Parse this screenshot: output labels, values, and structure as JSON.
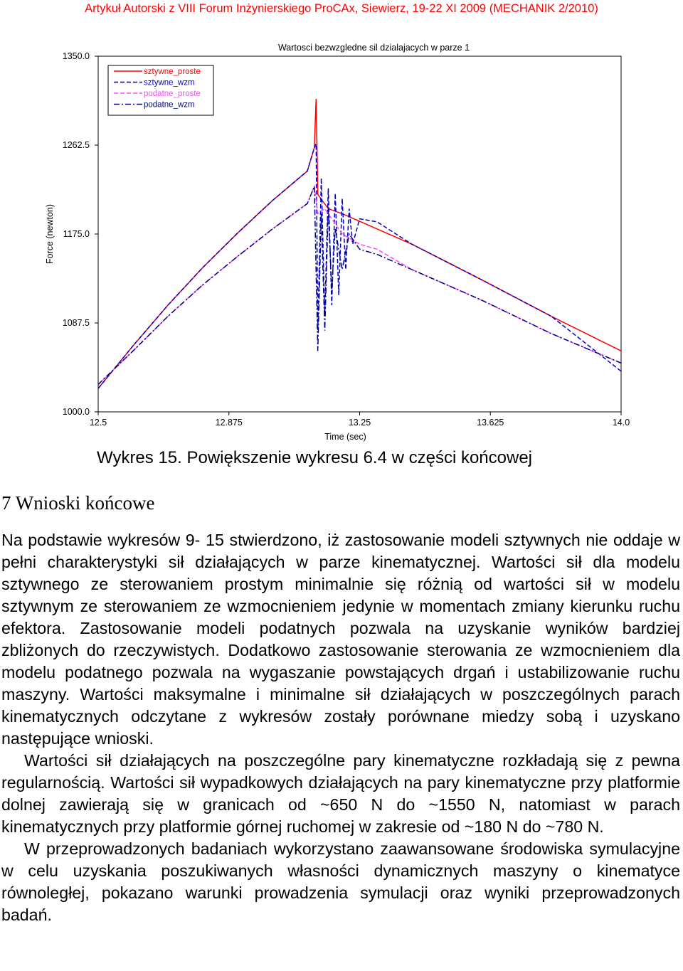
{
  "header": {
    "text": "Artykuł Autorski z VIII Forum Inżynierskiego ProCAx, Siewierz, 19-22 XI 2009 (MECHANIK 2/2010)"
  },
  "chart_data": {
    "type": "line",
    "title": "Wartosci bezwzgledne sil dzialajacych w parze 1",
    "xlabel": "Time (sec)",
    "ylabel": "Force (newton)",
    "xlim": [
      12.5,
      14.0
    ],
    "ylim": [
      1000.0,
      1350.0
    ],
    "xticks": [
      "12.5",
      "12.875",
      "13.25",
      "13.625",
      "14.0"
    ],
    "yticks": [
      "1000.0",
      "1087.5",
      "1175.0",
      "1262.5",
      "1350.0"
    ],
    "legend_position": "top-left",
    "grid": false,
    "series": [
      {
        "name": "sztywne_proste",
        "color": "#ff0000",
        "style": "solid",
        "x": [
          12.5,
          12.6,
          12.7,
          12.8,
          12.9,
          13.0,
          13.1,
          13.12,
          13.125,
          13.128,
          13.13,
          13.16,
          13.2,
          13.4,
          13.6,
          13.8,
          14.0
        ],
        "y": [
          1023,
          1065,
          1105,
          1142,
          1176,
          1208,
          1237,
          1260,
          1308,
          1255,
          1214,
          1200,
          1195,
          1165,
          1130,
          1094,
          1060
        ]
      },
      {
        "name": "sztywne_wzm",
        "color": "#0000cc",
        "style": "dashed",
        "x": [
          12.5,
          12.6,
          12.7,
          12.8,
          12.9,
          13.0,
          13.1,
          13.12,
          13.125,
          13.13,
          13.14,
          13.15,
          13.16,
          13.17,
          13.18,
          13.19,
          13.2,
          13.21,
          13.22,
          13.23,
          13.25,
          13.3,
          13.4,
          13.6,
          13.8,
          14.0
        ],
        "y": [
          1023,
          1065,
          1105,
          1142,
          1176,
          1208,
          1237,
          1260,
          1264,
          1080,
          1230,
          1095,
          1220,
          1105,
          1215,
          1115,
          1210,
          1140,
          1200,
          1165,
          1190,
          1187,
          1165,
          1130,
          1094,
          1040
        ]
      },
      {
        "name": "podatne_proste",
        "color": "#ff44ff",
        "style": "dashed",
        "x": [
          12.5,
          12.6,
          12.7,
          12.8,
          12.9,
          13.0,
          13.1,
          13.12,
          13.13,
          13.15,
          13.2,
          13.25,
          13.3,
          13.4,
          13.6,
          13.8,
          14.0
        ],
        "y": [
          1027,
          1060,
          1094,
          1125,
          1153,
          1180,
          1205,
          1222,
          1195,
          1200,
          1175,
          1165,
          1160,
          1140,
          1110,
          1077,
          1048
        ]
      },
      {
        "name": "podatne_wzm",
        "color": "#000080",
        "style": "dashdot",
        "x": [
          12.5,
          12.6,
          12.7,
          12.8,
          12.9,
          13.0,
          13.1,
          13.12,
          13.13,
          13.14,
          13.15,
          13.16,
          13.17,
          13.18,
          13.2,
          13.22,
          13.25,
          13.3,
          13.4,
          13.6,
          13.8,
          14.0
        ],
        "y": [
          1027,
          1060,
          1094,
          1125,
          1153,
          1180,
          1205,
          1222,
          1060,
          1195,
          1080,
          1200,
          1120,
          1180,
          1140,
          1175,
          1160,
          1155,
          1140,
          1110,
          1077,
          1048
        ]
      }
    ]
  },
  "caption": "Wykres 15. Powiększenie wykresu 6.4 w części końcowej",
  "section": {
    "title": "7 Wnioski końcowe"
  },
  "paragraphs": [
    {
      "text": "Na podstawie wykresów 9- 15 stwierdzono, iż zastosowanie modeli sztywnych nie oddaje w pełni charakterystyki sił działających w parze kinematycznej. Wartości sił dla modelu sztywnego ze sterowaniem prostym minimalnie się różnią od wartości sił w modelu sztywnym ze sterowaniem ze wzmocnieniem jedynie w momentach zmiany kierunku ruchu efektora. Zastosowanie modeli podatnych pozwala na uzyskanie wyników bardziej zbliżonych do rzeczywistych. Dodatkowo zastosowanie sterowania ze wzmocnieniem dla modelu podatnego pozwala na wygaszanie powstających drgań i ustabilizowanie ruchu maszyny. Wartości maksymalne i minimalne sił działających w poszczególnych parach kinematycznych odczytane z wykresów zostały porównane miedzy sobą i uzyskano następujące wnioski."
    },
    {
      "text": "Wartości sił działających na poszczególne pary kinematyczne rozkładają się z pewna regularnością. Wartości sił wypadkowych działających na pary kinematyczne przy platformie dolnej zawierają się w granicach od ~650 N do ~1550 N, natomiast w parach kinematycznych przy platformie górnej ruchomej w zakresie od ~180 N do ~780 N."
    },
    {
      "text": "W przeprowadzonych badaniach wykorzystano zaawansowane środowiska symulacyjne w celu uzyskania poszukiwanych własności dynamicznych maszyny o kinematyce równoległej, pokazano warunki prowadzenia symulacji oraz wyniki przeprowadzonych badań."
    }
  ]
}
